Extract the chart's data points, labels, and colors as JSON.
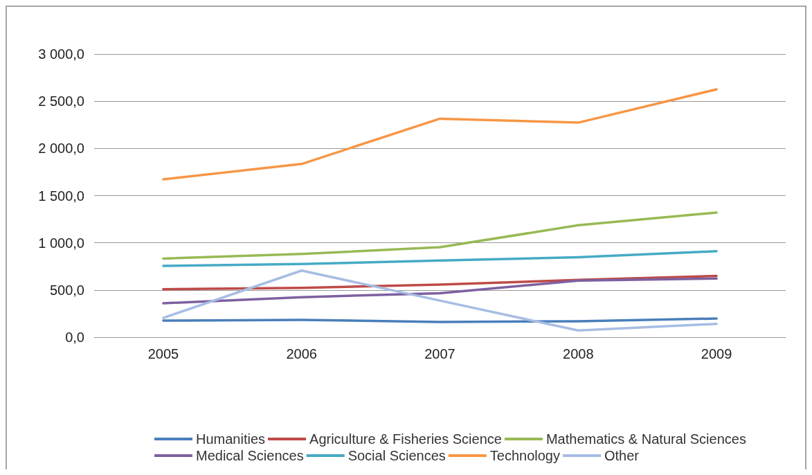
{
  "chart_data": {
    "type": "line",
    "categories": [
      "2005",
      "2006",
      "2007",
      "2008",
      "2009"
    ],
    "series": [
      {
        "name": "Humanities",
        "color": "#4a7ebb",
        "values": [
          176,
          184,
          162,
          169,
          198
        ]
      },
      {
        "name": "Agriculture & Fisheries Science",
        "color": "#be4b48",
        "values": [
          508,
          522,
          558,
          607,
          649
        ]
      },
      {
        "name": "Mathematics & Natural Sciences",
        "color": "#98b954",
        "values": [
          833,
          882,
          953,
          1186,
          1320
        ]
      },
      {
        "name": "Medical Sciences",
        "color": "#7d60a0",
        "values": [
          360,
          424,
          466,
          600,
          621
        ]
      },
      {
        "name": "Social Sciences",
        "color": "#46aac5",
        "values": [
          755,
          776,
          812,
          847,
          911
        ]
      },
      {
        "name": "Technology",
        "color": "#f79646",
        "values": [
          1673,
          1835,
          2315,
          2273,
          2626
        ]
      },
      {
        "name": "Other",
        "color": "#a6bde3",
        "values": [
          205,
          706,
          388,
          71,
          141
        ]
      }
    ],
    "ylim": [
      0,
      3000
    ],
    "yticks": [
      {
        "value": 0,
        "label": "0,0"
      },
      {
        "value": 500,
        "label": "500,0"
      },
      {
        "value": 1000,
        "label": "1 000,0"
      },
      {
        "value": 1500,
        "label": "1 500,0"
      },
      {
        "value": 2000,
        "label": "2 000,0"
      },
      {
        "value": 2500,
        "label": "2 500,0"
      },
      {
        "value": 3000,
        "label": "3 000,0"
      }
    ],
    "grid": "y",
    "legend": "bottom",
    "marker": "none",
    "line_style": "solid"
  }
}
